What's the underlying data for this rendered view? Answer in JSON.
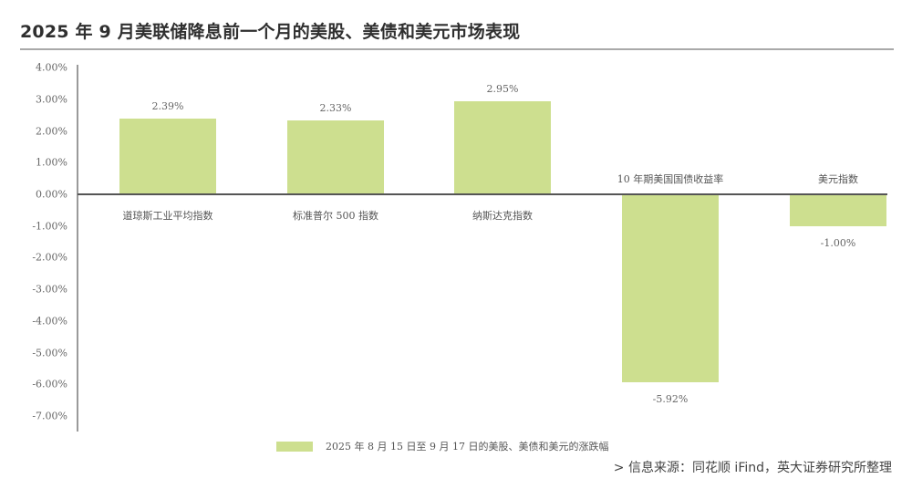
{
  "header": {
    "title": "2025 年 9 月美联储降息前一个月的美股、美债和美元市场表现"
  },
  "footer": {
    "source": "> 信息来源：同花顺 iFind，英大证券研究所整理"
  },
  "colors": {
    "bar": "#cddf8f",
    "axis": "#9a9a9a",
    "zero_line": "#555555",
    "title_rule": "#a9a9a9"
  },
  "chart_data": {
    "type": "bar",
    "title": "2025 年 9 月美联储降息前一个月的美股、美债和美元市场表现",
    "xlabel": "",
    "ylabel": "",
    "categories": [
      "道琼斯工业平均指数",
      "标准普尔 500 指数",
      "纳斯达克指数",
      "10 年期美国国债收益率",
      "美元指数"
    ],
    "series": [
      {
        "name": "2025 年 8 月 15 日至 9 月 17 日的美股、美债和美元的涨跌幅",
        "values": [
          2.39,
          2.33,
          2.95,
          -5.92,
          -1.0
        ],
        "value_labels": [
          "2.39%",
          "2.33%",
          "2.95%",
          "-5.92%",
          "-1.00%"
        ]
      }
    ],
    "ylim": [
      -7,
      4
    ],
    "yticks": [
      4,
      3,
      2,
      1,
      0,
      -1,
      -2,
      -3,
      -4,
      -5,
      -6,
      -7
    ],
    "ytick_labels": [
      "4.00%",
      "3.00%",
      "2.00%",
      "1.00%",
      "0.00%",
      "-1.00%",
      "-2.00%",
      "-3.00%",
      "-4.00%",
      "-5.00%",
      "-6.00%",
      "-7.00%"
    ],
    "grid": false,
    "legend_position": "bottom-center",
    "legend": [
      "2025 年 8 月 15 日至 9 月 17 日的美股、美债和美元的涨跌幅"
    ]
  }
}
